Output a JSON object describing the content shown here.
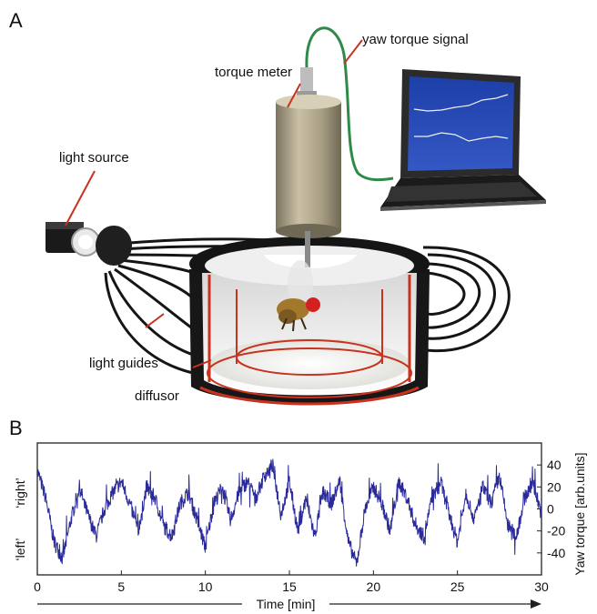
{
  "panels": {
    "a": {
      "letter": "A",
      "callouts": {
        "yaw_torque_signal": "yaw torque signal",
        "torque_meter": "torque meter",
        "light_source": "light source",
        "light_guides": "light guides",
        "diffusor": "diffusor"
      }
    },
    "b": {
      "letter": "B",
      "left_labels": {
        "right": "‘right’",
        "left": "‘left’"
      }
    }
  },
  "colors": {
    "trace": "#2a2a9a",
    "accent_red": "#c8321e",
    "arena_black": "#141414",
    "cylinder": "#b3a991",
    "cable_green": "#2f8a4a"
  },
  "chart_data": {
    "type": "line",
    "xlabel": "Time [min]",
    "ylabel": "Yaw torque [arb.units]",
    "xlim": [
      0,
      30
    ],
    "ylim": [
      -60,
      60
    ],
    "x_ticks": [
      0,
      5,
      10,
      15,
      20,
      25,
      30
    ],
    "y_ticks": [
      40,
      20,
      0,
      -20,
      -40
    ],
    "series": [
      {
        "x": [
          0,
          0.5,
          1,
          1.5,
          2,
          2.5,
          3,
          3.5,
          4,
          4.5,
          5,
          5.5,
          6,
          6.5,
          7,
          7.5,
          8,
          8.5,
          9,
          9.5,
          10,
          10.5,
          11,
          11.5,
          12,
          12.5,
          13,
          13.5,
          14,
          14.5,
          15,
          15.5,
          16,
          16.5,
          17,
          17.5,
          18,
          18.5,
          19,
          19.5,
          20,
          20.5,
          21,
          21.5,
          22,
          22.5,
          23,
          23.5,
          24,
          24.5,
          25,
          25.5,
          26,
          26.5,
          27,
          27.5,
          28,
          28.5,
          29,
          29.5,
          30
        ],
        "y": [
          35,
          10,
          -30,
          -45,
          -10,
          20,
          -5,
          -25,
          0,
          15,
          25,
          5,
          -20,
          20,
          10,
          -15,
          -25,
          5,
          15,
          -10,
          -35,
          5,
          20,
          -10,
          15,
          25,
          10,
          30,
          40,
          -5,
          25,
          -20,
          10,
          -25,
          15,
          5,
          25,
          -30,
          -50,
          0,
          20,
          5,
          -20,
          25,
          10,
          -15,
          -25,
          10,
          25,
          -5,
          -30,
          15,
          -10,
          20,
          5,
          30,
          -15,
          -25,
          10,
          25,
          -5
        ]
      }
    ]
  }
}
